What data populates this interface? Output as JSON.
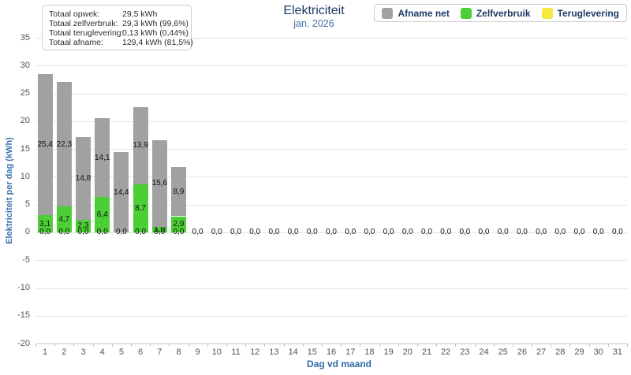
{
  "title": "Elektriciteit",
  "subtitle": "jan. 2026",
  "summary": {
    "rows": [
      {
        "label": "Totaal opwek:",
        "value": "29,5 kWh"
      },
      {
        "label": "Totaal zelfverbruik:",
        "value": "29,3 kWh (99,6%)"
      },
      {
        "label": "Totaal teruglevering:",
        "value": "0,13 kWh (0,44%)"
      },
      {
        "label": "Totaal afname:",
        "value": "129,4 kWh (81,5%)"
      }
    ]
  },
  "legend": [
    {
      "name": "afname-net",
      "label": "Afname net",
      "color": "#a1a1a1"
    },
    {
      "name": "zelfverbruik",
      "label": "Zelfverbruik",
      "color": "#4bce36"
    },
    {
      "name": "teruglevering",
      "label": "Teruglevering",
      "color": "#f4ea3d"
    }
  ],
  "chart_data": {
    "type": "bar",
    "stacked": true,
    "title": "Elektriciteit",
    "subtitle": "jan. 2026",
    "xlabel": "Dag vd maand",
    "ylabel": "Elektriciteit per dag (kWh)",
    "ylim": [
      -20,
      35
    ],
    "ytick_step": 5,
    "grid": true,
    "legend_position": "top-right",
    "decimal_separator": ",",
    "categories": [
      1,
      2,
      3,
      4,
      5,
      6,
      7,
      8,
      9,
      10,
      11,
      12,
      13,
      14,
      15,
      16,
      17,
      18,
      19,
      20,
      21,
      22,
      23,
      24,
      25,
      26,
      27,
      28,
      29,
      30,
      31
    ],
    "series": [
      {
        "name": "Afname net",
        "color": "#a1a1a1",
        "values": [
          25.4,
          22.3,
          14.8,
          14.1,
          14.4,
          13.9,
          15.6,
          8.9,
          0,
          0,
          0,
          0,
          0,
          0,
          0,
          0,
          0,
          0,
          0,
          0,
          0,
          0,
          0,
          0,
          0,
          0,
          0,
          0,
          0,
          0,
          0
        ]
      },
      {
        "name": "Zelfverbruik",
        "color": "#4bce36",
        "values": [
          3.1,
          4.7,
          2.3,
          6.4,
          0,
          8.7,
          1.0,
          2.9,
          0,
          0,
          0,
          0,
          0,
          0,
          0,
          0,
          0,
          0,
          0,
          0,
          0,
          0,
          0,
          0,
          0,
          0,
          0,
          0,
          0,
          0,
          0
        ]
      },
      {
        "name": "Teruglevering",
        "color": "#f4ea3d",
        "values": [
          0,
          0,
          0,
          0,
          0,
          0,
          0,
          0,
          0,
          0,
          0,
          0,
          0,
          0,
          0,
          0,
          0,
          0,
          0,
          0,
          0,
          0,
          0,
          0,
          0,
          0,
          0,
          0,
          0,
          0,
          0
        ]
      }
    ],
    "stack_bottom_to_top": [
      "Zelfverbruik",
      "Afname net",
      "Teruglevering"
    ]
  }
}
